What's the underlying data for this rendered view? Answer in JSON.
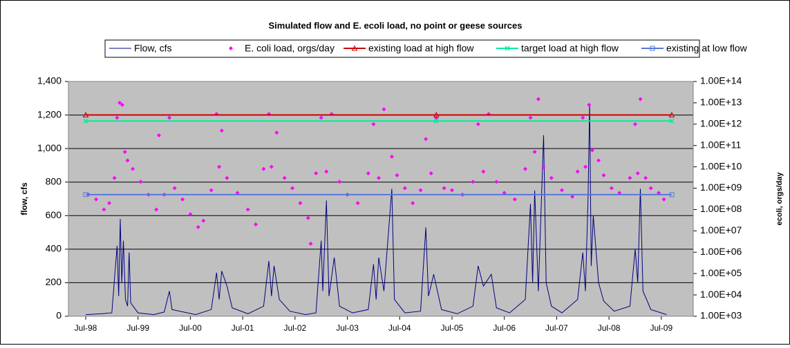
{
  "chart_data": {
    "type": "line",
    "title": "Simulated flow and E. ecoli load, no point or geese sources",
    "y_label": "flow, cfs",
    "y2_label": "ecoli, orgs/day",
    "xlim": [
      1998.17,
      2010.11
    ],
    "xticks": [
      {
        "value": 1998.5,
        "label": "Jul-98"
      },
      {
        "value": 1999.5,
        "label": "Jul-99"
      },
      {
        "value": 2000.5,
        "label": "Jul-00"
      },
      {
        "value": 2001.5,
        "label": "Jul-01"
      },
      {
        "value": 2002.5,
        "label": "Jul-02"
      },
      {
        "value": 2003.5,
        "label": "Jul-03"
      },
      {
        "value": 2004.5,
        "label": "Jul-04"
      },
      {
        "value": 2005.5,
        "label": "Jul-05"
      },
      {
        "value": 2006.5,
        "label": "Jul-06"
      },
      {
        "value": 2007.5,
        "label": "Jul-07"
      },
      {
        "value": 2008.5,
        "label": "Jul-08"
      },
      {
        "value": 2009.5,
        "label": "Jul-09"
      }
    ],
    "ylim": [
      0,
      1400
    ],
    "yticks": [
      0,
      200,
      400,
      600,
      800,
      {
        "value": 1000,
        "label": "1,000"
      },
      {
        "value": 1200,
        "label": "1,200"
      },
      {
        "value": 1400,
        "label": "1,400"
      }
    ],
    "y2lim": [
      1000.0,
      100000000000000.0
    ],
    "y2log": true,
    "y2ticks": [
      {
        "value": 1000.0,
        "label": "1.00E+03"
      },
      {
        "value": 10000.0,
        "label": "1.00E+04"
      },
      {
        "value": 100000.0,
        "label": "1.00E+05"
      },
      {
        "value": 1000000.0,
        "label": "1.00E+06"
      },
      {
        "value": 10000000.0,
        "label": "1.00E+07"
      },
      {
        "value": 100000000.0,
        "label": "1.00E+08"
      },
      {
        "value": 1000000000.0,
        "label": "1.00E+09"
      },
      {
        "value": 10000000000.0,
        "label": "1.00E+10"
      },
      {
        "value": 100000000000.0,
        "label": "1.00E+11"
      },
      {
        "value": 1000000000000.0,
        "label": "1.00E+12"
      },
      {
        "value": 10000000000000.0,
        "label": "1.00E+13"
      },
      {
        "value": 100000000000000.0,
        "label": "1.00E+14"
      }
    ],
    "grid": true,
    "legend": "top",
    "series": [
      {
        "name": "Flow, cfs",
        "color": "#000080",
        "style": "line",
        "axis": "y",
        "x": [
          1998.5,
          1998.8,
          1999.0,
          1999.1,
          1999.13,
          1999.16,
          1999.19,
          1999.22,
          1999.26,
          1999.3,
          1999.33,
          1999.36,
          1999.5,
          1999.8,
          2000.0,
          2000.1,
          2000.15,
          2000.3,
          2000.6,
          2000.9,
          2001.0,
          2001.05,
          2001.1,
          2001.2,
          2001.3,
          2001.6,
          2001.9,
          2002.0,
          2002.05,
          2002.1,
          2002.2,
          2002.4,
          2002.7,
          2002.9,
          2003.0,
          2003.03,
          2003.1,
          2003.15,
          2003.25,
          2003.35,
          2003.6,
          2003.9,
          2004.0,
          2004.05,
          2004.1,
          2004.2,
          2004.35,
          2004.4,
          2004.6,
          2004.9,
          2005.0,
          2005.05,
          2005.15,
          2005.3,
          2005.6,
          2005.9,
          2006.0,
          2006.1,
          2006.25,
          2006.35,
          2006.6,
          2006.9,
          2007.0,
          2007.04,
          2007.08,
          2007.15,
          2007.25,
          2007.3,
          2007.4,
          2007.6,
          2007.9,
          2008.0,
          2008.05,
          2008.1,
          2008.13,
          2008.16,
          2008.2,
          2008.25,
          2008.3,
          2008.4,
          2008.6,
          2008.9,
          2009.0,
          2009.05,
          2009.1,
          2009.15,
          2009.3,
          2009.6
        ],
        "values": [
          10,
          15,
          20,
          420,
          120,
          580,
          200,
          450,
          100,
          60,
          380,
          80,
          20,
          10,
          25,
          150,
          40,
          30,
          10,
          40,
          260,
          100,
          270,
          180,
          50,
          15,
          60,
          330,
          120,
          300,
          100,
          30,
          10,
          20,
          450,
          150,
          690,
          120,
          350,
          60,
          20,
          40,
          310,
          100,
          350,
          150,
          760,
          100,
          20,
          30,
          530,
          120,
          250,
          40,
          15,
          60,
          300,
          180,
          250,
          50,
          20,
          100,
          670,
          200,
          750,
          150,
          1080,
          200,
          60,
          20,
          100,
          380,
          150,
          700,
          1270,
          300,
          600,
          400,
          200,
          90,
          30,
          60,
          400,
          200,
          760,
          150,
          40,
          10
        ]
      },
      {
        "name": "E. coli load, orgs/day",
        "color": "#ff00ff",
        "style": "scatter",
        "axis": "y2",
        "x": [
          1998.55,
          1998.7,
          1998.85,
          1998.95,
          1999.05,
          1999.1,
          1999.15,
          1999.2,
          1999.25,
          1999.3,
          1999.4,
          1999.55,
          1999.7,
          1999.85,
          1999.9,
          2000.0,
          2000.1,
          2000.2,
          2000.35,
          2000.5,
          2000.65,
          2000.75,
          2000.9,
          2001.0,
          2001.05,
          2001.1,
          2001.2,
          2001.4,
          2001.6,
          2001.75,
          2001.9,
          2002.0,
          2002.05,
          2002.15,
          2002.3,
          2002.45,
          2002.6,
          2002.75,
          2002.8,
          2002.9,
          2003.0,
          2003.1,
          2003.2,
          2003.35,
          2003.5,
          2003.7,
          2003.9,
          2004.0,
          2004.1,
          2004.2,
          2004.35,
          2004.45,
          2004.6,
          2004.75,
          2004.9,
          2005.0,
          2005.1,
          2005.2,
          2005.35,
          2005.5,
          2005.7,
          2005.9,
          2006.0,
          2006.1,
          2006.2,
          2006.35,
          2006.5,
          2006.7,
          2006.9,
          2007.0,
          2007.08,
          2007.15,
          2007.25,
          2007.4,
          2007.6,
          2007.8,
          2007.9,
          2008.0,
          2008.05,
          2008.12,
          2008.18,
          2008.3,
          2008.4,
          2008.55,
          2008.7,
          2008.9,
          2009.0,
          2009.05,
          2009.1,
          2009.2,
          2009.3,
          2009.45,
          2009.55
        ],
        "values": [
          500000000.0,
          300000000.0,
          100000000.0,
          200000000.0,
          3000000000.0,
          2000000000000.0,
          10000000000000.0,
          8000000000000.0,
          50000000000.0,
          20000000000.0,
          8000000000.0,
          2000000000.0,
          500000000.0,
          100000000.0,
          300000000000.0,
          500000000.0,
          2000000000000.0,
          1000000000.0,
          300000000.0,
          60000000.0,
          15000000.0,
          30000000.0,
          800000000.0,
          3000000000000.0,
          10000000000.0,
          500000000000.0,
          3000000000.0,
          600000000.0,
          100000000.0,
          20000000.0,
          8000000000.0,
          3000000000000.0,
          10000000000.0,
          400000000000.0,
          3000000000.0,
          1000000000.0,
          200000000.0,
          40000000.0,
          2500000.0,
          5000000000.0,
          2000000000000.0,
          6000000000.0,
          3000000000000.0,
          2000000000.0,
          500000000.0,
          200000000.0,
          5000000000.0,
          1000000000000.0,
          3000000000.0,
          5000000000000.0,
          30000000000.0,
          4000000000.0,
          1000000000.0,
          200000000.0,
          800000000.0,
          200000000000.0,
          5000000000.0,
          2000000000000.0,
          1000000000.0,
          800000000.0,
          500000000.0,
          2000000000.0,
          1000000000000.0,
          6000000000.0,
          3000000000000.0,
          2000000000.0,
          600000000.0,
          300000000.0,
          8000000000.0,
          2000000000000.0,
          50000000000.0,
          15000000000000.0,
          10000000000.0,
          3000000000.0,
          800000000.0,
          400000000.0,
          6000000000.0,
          2000000000000.0,
          10000000000.0,
          8000000000000.0,
          60000000000.0,
          20000000000.0,
          4000000000.0,
          1000000000.0,
          600000000.0,
          3000000000.0,
          1000000000000.0,
          5000000000.0,
          15000000000000.0,
          3000000000.0,
          1000000000.0,
          600000000.0,
          300000000.0
        ]
      },
      {
        "name": "existing load at high flow",
        "color": "#cc0000",
        "style": "line-marker",
        "marker": "triangle",
        "axis": "y2",
        "x": [
          1998.5,
          2005.2,
          2009.7
        ],
        "values": [
          2700000000000.0,
          2700000000000.0,
          2700000000000.0
        ]
      },
      {
        "name": "target load at high flow",
        "color": "#00ee99",
        "style": "line-marker",
        "marker": "x",
        "axis": "y2",
        "x": [
          1998.5,
          2005.2,
          2009.7
        ],
        "values": [
          1400000000000.0,
          1400000000000.0,
          1400000000000.0
        ]
      },
      {
        "name": "existing at low flow",
        "color": "#5577dd",
        "style": "line-marker",
        "marker": "square",
        "axis": "y2",
        "x": [
          1998.5,
          2009.7
        ],
        "values": [
          500000000.0,
          500000000.0
        ]
      }
    ]
  }
}
